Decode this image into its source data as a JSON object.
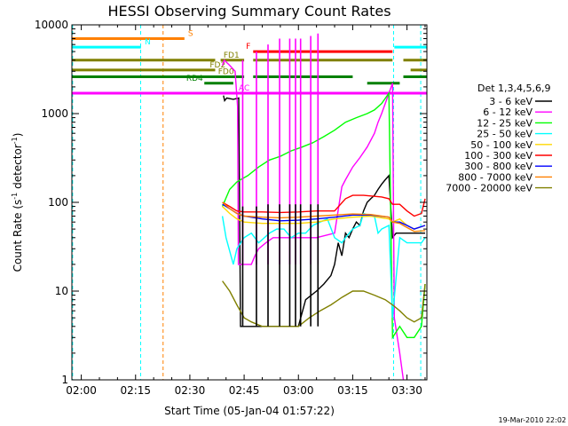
{
  "chart_data": {
    "type": "line",
    "title": "HESSI Observing Summary Count Rates",
    "xlabel": "Start Time (05-Jan-04 01:57:22)",
    "ylabel_main": "Count Rate (s",
    "ylabel_sup1": "-1",
    "ylabel_mid": " detector",
    "ylabel_sup2": "-1",
    "ylabel_end": ")",
    "yscale": "log",
    "xlim": [
      117.4,
      215.5
    ],
    "ylim": [
      1,
      10000
    ],
    "x_ticks": [
      120,
      135,
      150,
      165,
      180,
      195,
      210
    ],
    "x_tick_labels": [
      "02:00",
      "02:15",
      "02:30",
      "02:45",
      "03:00",
      "03:15",
      "03:30"
    ],
    "y_ticks": [
      1,
      10,
      100,
      1000,
      10000
    ],
    "y_tick_labels": [
      "1",
      "10",
      "100",
      "1000",
      "10000"
    ],
    "legend_title": "Det 1,3,4,5,6,9",
    "legend_position": "right",
    "series": [
      {
        "name": "3 - 6 keV",
        "color": "#000000",
        "points": [
          [
            159.3,
            1600
          ],
          [
            159.6,
            1400
          ],
          [
            160.2,
            1500
          ],
          [
            162,
            1450
          ],
          [
            163.5,
            1500
          ],
          [
            164,
            4
          ],
          [
            170,
            4
          ],
          [
            175,
            4
          ],
          [
            180,
            4
          ],
          [
            182,
            8
          ],
          [
            185,
            10
          ],
          [
            187,
            12
          ],
          [
            189,
            15
          ],
          [
            190,
            20
          ],
          [
            191,
            35
          ],
          [
            192,
            25
          ],
          [
            193,
            45
          ],
          [
            194,
            40
          ],
          [
            195,
            50
          ],
          [
            196,
            60
          ],
          [
            197,
            55
          ],
          [
            198,
            80
          ],
          [
            199,
            100
          ],
          [
            200,
            110
          ],
          [
            201,
            120
          ],
          [
            202,
            140
          ],
          [
            203,
            160
          ],
          [
            204,
            180
          ],
          [
            205,
            200
          ],
          [
            206,
            40
          ],
          [
            207,
            45
          ],
          [
            210,
            45
          ],
          [
            213,
            45
          ],
          [
            215,
            45
          ]
        ]
      },
      {
        "name": "6 - 12 keV",
        "color": "#ff00ff",
        "points": [
          [
            159,
            3500
          ],
          [
            159.5,
            4000
          ],
          [
            161,
            3500
          ],
          [
            162.5,
            3000
          ],
          [
            163.2,
            1200
          ],
          [
            163.4,
            20
          ],
          [
            164,
            20
          ],
          [
            167,
            20
          ],
          [
            168,
            25
          ],
          [
            169,
            30
          ],
          [
            171,
            35
          ],
          [
            173,
            40
          ],
          [
            175,
            40
          ],
          [
            180,
            40
          ],
          [
            185,
            40
          ],
          [
            190,
            45
          ],
          [
            192,
            150
          ],
          [
            193,
            180
          ],
          [
            195,
            250
          ],
          [
            197,
            320
          ],
          [
            199,
            420
          ],
          [
            201,
            600
          ],
          [
            202,
            800
          ],
          [
            203,
            1000
          ],
          [
            204,
            1300
          ],
          [
            205,
            1700
          ],
          [
            206,
            2200
          ],
          [
            206.5,
            5
          ],
          [
            208,
            2
          ],
          [
            209,
            1
          ]
        ]
      },
      {
        "name": "12 - 25 keV",
        "color": "#00ff00",
        "points": [
          [
            159,
            90
          ],
          [
            161,
            140
          ],
          [
            163,
            170
          ],
          [
            164,
            180
          ],
          [
            166,
            200
          ],
          [
            169,
            250
          ],
          [
            172,
            300
          ],
          [
            175,
            330
          ],
          [
            178,
            380
          ],
          [
            181,
            420
          ],
          [
            184,
            470
          ],
          [
            187,
            550
          ],
          [
            190,
            650
          ],
          [
            193,
            800
          ],
          [
            196,
            900
          ],
          [
            199,
            1000
          ],
          [
            201,
            1100
          ],
          [
            203,
            1300
          ],
          [
            205,
            1700
          ],
          [
            206,
            3
          ],
          [
            208,
            4
          ],
          [
            210,
            3
          ],
          [
            212,
            3
          ],
          [
            214,
            4
          ],
          [
            215,
            12
          ]
        ]
      },
      {
        "name": "25 - 50 keV",
        "color": "#00ffff",
        "points": [
          [
            159,
            70
          ],
          [
            160,
            40
          ],
          [
            162,
            20
          ],
          [
            163,
            30
          ],
          [
            165,
            40
          ],
          [
            167,
            45
          ],
          [
            169,
            35
          ],
          [
            172,
            45
          ],
          [
            174,
            50
          ],
          [
            176,
            50
          ],
          [
            178,
            40
          ],
          [
            180,
            45
          ],
          [
            182,
            45
          ],
          [
            184,
            55
          ],
          [
            186,
            60
          ],
          [
            188,
            65
          ],
          [
            190,
            40
          ],
          [
            192,
            35
          ],
          [
            193,
            40
          ],
          [
            195,
            50
          ],
          [
            197,
            55
          ],
          [
            198,
            75
          ],
          [
            200,
            70
          ],
          [
            201,
            70
          ],
          [
            202,
            45
          ],
          [
            203,
            50
          ],
          [
            205,
            55
          ],
          [
            206,
            5
          ],
          [
            208,
            40
          ],
          [
            210,
            35
          ],
          [
            212,
            35
          ],
          [
            214,
            35
          ],
          [
            215,
            40
          ]
        ]
      },
      {
        "name": "50 - 100 keV",
        "color": "#ffd700",
        "points": [
          [
            159,
            90
          ],
          [
            161,
            75
          ],
          [
            163,
            65
          ],
          [
            165,
            60
          ],
          [
            170,
            58
          ],
          [
            175,
            58
          ],
          [
            180,
            58
          ],
          [
            185,
            60
          ],
          [
            190,
            65
          ],
          [
            195,
            68
          ],
          [
            200,
            70
          ],
          [
            205,
            65
          ],
          [
            206,
            60
          ],
          [
            208,
            65
          ],
          [
            210,
            55
          ],
          [
            212,
            50
          ],
          [
            215,
            55
          ]
        ]
      },
      {
        "name": "100 - 300 keV",
        "color": "#ff0000",
        "points": [
          [
            159,
            100
          ],
          [
            161,
            90
          ],
          [
            163,
            80
          ],
          [
            165,
            78
          ],
          [
            170,
            78
          ],
          [
            175,
            77
          ],
          [
            180,
            78
          ],
          [
            185,
            80
          ],
          [
            190,
            80
          ],
          [
            193,
            110
          ],
          [
            195,
            120
          ],
          [
            198,
            120
          ],
          [
            200,
            118
          ],
          [
            203,
            115
          ],
          [
            205,
            110
          ],
          [
            206,
            95
          ],
          [
            208,
            95
          ],
          [
            210,
            80
          ],
          [
            212,
            70
          ],
          [
            214,
            75
          ],
          [
            215,
            110
          ]
        ]
      },
      {
        "name": "300 - 800 keV",
        "color": "#0000ff",
        "points": [
          [
            159,
            95
          ],
          [
            161,
            85
          ],
          [
            163,
            75
          ],
          [
            165,
            70
          ],
          [
            170,
            65
          ],
          [
            175,
            62
          ],
          [
            180,
            63
          ],
          [
            185,
            65
          ],
          [
            190,
            68
          ],
          [
            195,
            72
          ],
          [
            200,
            72
          ],
          [
            205,
            68
          ],
          [
            206,
            60
          ],
          [
            208,
            60
          ],
          [
            210,
            55
          ],
          [
            212,
            50
          ],
          [
            215,
            55
          ]
        ]
      },
      {
        "name": "800 - 7000 keV",
        "color": "#ff8000",
        "points": [
          [
            159,
            100
          ],
          [
            161,
            85
          ],
          [
            163,
            75
          ],
          [
            165,
            70
          ],
          [
            170,
            68
          ],
          [
            175,
            67
          ],
          [
            180,
            68
          ],
          [
            185,
            70
          ],
          [
            190,
            72
          ],
          [
            195,
            74
          ],
          [
            200,
            73
          ],
          [
            205,
            68
          ],
          [
            206,
            60
          ],
          [
            208,
            58
          ],
          [
            210,
            52
          ],
          [
            212,
            47
          ],
          [
            215,
            48
          ]
        ]
      },
      {
        "name": "7000 - 20000 keV",
        "color": "#808000",
        "points": [
          [
            159,
            13
          ],
          [
            161,
            10
          ],
          [
            163,
            7
          ],
          [
            165,
            5
          ],
          [
            167,
            4.5
          ],
          [
            170,
            4
          ],
          [
            175,
            4
          ],
          [
            180,
            4
          ],
          [
            183,
            5
          ],
          [
            186,
            6
          ],
          [
            189,
            7
          ],
          [
            192,
            8.5
          ],
          [
            195,
            10
          ],
          [
            198,
            10
          ],
          [
            201,
            9
          ],
          [
            204,
            8
          ],
          [
            206,
            7
          ],
          [
            208,
            6
          ],
          [
            210,
            5
          ],
          [
            212,
            4.5
          ],
          [
            214,
            5
          ],
          [
            215,
            12
          ]
        ]
      }
    ]
  },
  "spikes": {
    "color": "#ff00ff",
    "x": [
      164.6,
      168.4,
      171.6,
      174.8,
      177.6,
      179.2,
      180.6,
      183.4,
      185.4
    ],
    "peak": [
      4000,
      5000,
      6000,
      7000,
      7000,
      7000,
      7000,
      7500,
      8000
    ],
    "base": 20
  },
  "black_spikes": {
    "color": "#000000",
    "x": [
      164.6,
      168.4,
      171.6,
      174.8,
      177.6,
      179.2,
      180.6,
      183.4,
      185.4
    ],
    "peak": [
      90,
      90,
      95,
      95,
      95,
      95,
      95,
      95,
      95
    ],
    "base": 4
  },
  "flag_bars": [
    {
      "label": "S",
      "color": "#ff8000",
      "segments": [
        [
          117.4,
          148.5
        ]
      ],
      "y": 7000,
      "label_x": 149.5
    },
    {
      "label": "N",
      "color": "#00ffff",
      "segments": [
        [
          117.4,
          136.5
        ],
        [
          206.5,
          215.5
        ]
      ],
      "y": 5600,
      "label_x": 137.5
    },
    {
      "label": "F",
      "color": "#ff0000",
      "segments": [
        [
          167.5,
          206
        ]
      ],
      "y": 5000,
      "label_x": 165.5
    },
    {
      "label": "FD1",
      "color": "#808000",
      "segments": [
        [
          117.4,
          157
        ],
        [
          158.5,
          165
        ],
        [
          167.5,
          206
        ],
        [
          209,
          215.5
        ]
      ],
      "y": 4000,
      "label_x": 159.3
    },
    {
      "label": "FD2",
      "color": "#808000",
      "segments": [
        [
          117.4,
          157
        ],
        [
          211,
          215.5
        ]
      ],
      "y": 3100,
      "label_x": 155.5
    },
    {
      "label": "FD0",
      "color": "#808000",
      "segments": [
        [
          157,
          158
        ]
      ],
      "y": 2600,
      "label_x": 157.8
    },
    {
      "label": "",
      "color": "#008000",
      "segments": [
        [
          117.4,
          165
        ],
        [
          167.5,
          195
        ],
        [
          209,
          215.5
        ]
      ],
      "y": 2600,
      "label_x": 0
    },
    {
      "label": "RD4",
      "color": "#008000",
      "segments": [
        [
          154,
          162
        ],
        [
          199,
          208
        ]
      ],
      "y": 2200,
      "label_x": 149
    },
    {
      "label": "AC",
      "color": "#ff00ff",
      "segments": [
        [
          117.4,
          215.5
        ]
      ],
      "y": 1700,
      "label_x": 163.5
    }
  ],
  "vlines": [
    {
      "x": 117.6,
      "color": "#00ffff"
    },
    {
      "x": 136.4,
      "color": "#00ffff"
    },
    {
      "x": 142.6,
      "color": "#ff8000"
    },
    {
      "x": 206.3,
      "color": "#00ffff"
    },
    {
      "x": 213.8,
      "color": "#00ffff"
    }
  ],
  "stamp": "19-Mar-2010 22:02"
}
